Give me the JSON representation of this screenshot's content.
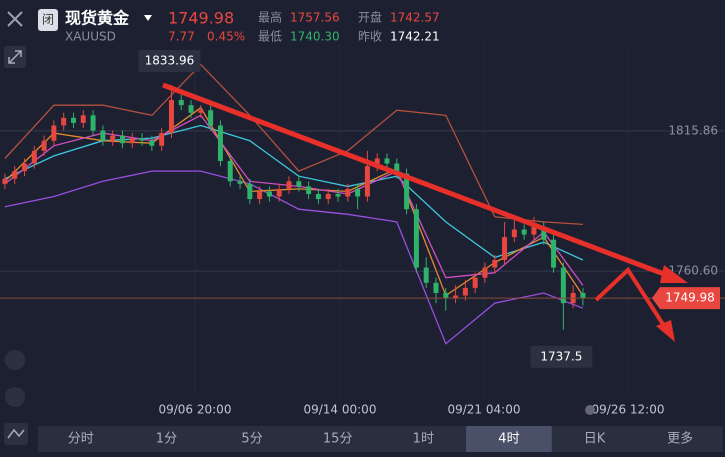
{
  "header": {
    "close_button": "闭",
    "name": "现货黄金",
    "symbol": "XAUUSD",
    "price": "1749.98",
    "change": "7.77",
    "change_pct": "0.45%",
    "high_label": "最高",
    "high": "1757.56",
    "open_label": "开盘",
    "open": "1742.57",
    "low_label": "最低",
    "low": "1740.30",
    "prev_label": "昨收",
    "prev": "1742.21"
  },
  "chart_data": {
    "type": "candlestick",
    "candles": [
      [
        1795,
        1799,
        1793,
        1797
      ],
      [
        1797,
        1802,
        1795,
        1800
      ],
      [
        1800,
        1805,
        1798,
        1803
      ],
      [
        1803,
        1810,
        1801,
        1808
      ],
      [
        1808,
        1814,
        1806,
        1812
      ],
      [
        1812,
        1820,
        1810,
        1818
      ],
      [
        1818,
        1823,
        1816,
        1821
      ],
      [
        1821,
        1823,
        1817,
        1819
      ],
      [
        1819,
        1824,
        1817,
        1822
      ],
      [
        1822,
        1824,
        1814,
        1816
      ],
      [
        1816,
        1818,
        1810,
        1812
      ],
      [
        1812,
        1816,
        1810,
        1814
      ],
      [
        1814,
        1816,
        1809,
        1811
      ],
      [
        1811,
        1815,
        1809,
        1813
      ],
      [
        1813,
        1815,
        1810,
        1812
      ],
      [
        1812,
        1814,
        1808,
        1810
      ],
      [
        1810,
        1817,
        1808,
        1815
      ],
      [
        1815,
        1833.96,
        1813,
        1828
      ],
      [
        1828,
        1830,
        1824,
        1826
      ],
      [
        1826,
        1828,
        1821,
        1823
      ],
      [
        1823,
        1826,
        1821,
        1824
      ],
      [
        1824,
        1826,
        1816,
        1818
      ],
      [
        1818,
        1820,
        1802,
        1804
      ],
      [
        1804,
        1806,
        1794,
        1796
      ],
      [
        1796,
        1798,
        1793,
        1795
      ],
      [
        1795,
        1797,
        1787,
        1789
      ],
      [
        1789,
        1794,
        1787,
        1792
      ],
      [
        1792,
        1794,
        1788,
        1790
      ],
      [
        1790,
        1795,
        1788,
        1793
      ],
      [
        1793,
        1798,
        1791,
        1796
      ],
      [
        1796,
        1798,
        1792,
        1794
      ],
      [
        1794,
        1796,
        1789,
        1791
      ],
      [
        1791,
        1793,
        1787,
        1789
      ],
      [
        1789,
        1793,
        1787,
        1791
      ],
      [
        1791,
        1793,
        1788,
        1790
      ],
      [
        1790,
        1795,
        1788,
        1793
      ],
      [
        1793,
        1795,
        1785,
        1790
      ],
      [
        1790,
        1808,
        1788,
        1802
      ],
      [
        1802,
        1807,
        1800,
        1805
      ],
      [
        1805,
        1807,
        1801,
        1803
      ],
      [
        1803,
        1805,
        1797,
        1799
      ],
      [
        1799,
        1801,
        1783,
        1785
      ],
      [
        1785,
        1787,
        1760,
        1762
      ],
      [
        1762,
        1766,
        1754,
        1756
      ],
      [
        1756,
        1758,
        1748,
        1752
      ],
      [
        1752,
        1754,
        1745,
        1750
      ],
      [
        1750,
        1755,
        1748,
        1751
      ],
      [
        1751,
        1757,
        1749,
        1754
      ],
      [
        1754,
        1760,
        1752,
        1758
      ],
      [
        1758,
        1764,
        1756,
        1762
      ],
      [
        1762,
        1767,
        1760,
        1765
      ],
      [
        1765,
        1780,
        1763,
        1774
      ],
      [
        1774,
        1781,
        1772,
        1777
      ],
      [
        1777,
        1779,
        1773,
        1775
      ],
      [
        1775,
        1782,
        1773,
        1778
      ],
      [
        1778,
        1780,
        1771,
        1773
      ],
      [
        1773,
        1775,
        1760,
        1762
      ],
      [
        1762,
        1764,
        1737.5,
        1748
      ],
      [
        1748,
        1755,
        1746,
        1752
      ],
      [
        1752,
        1754,
        1747,
        1749.98
      ]
    ],
    "up_color": "#e8473f",
    "down_color": "#2fb36a",
    "line_x": [
      0,
      5,
      10,
      15,
      20,
      25,
      30,
      35,
      40,
      45,
      50,
      55,
      59
    ],
    "series": [
      {
        "color": "#b5503e",
        "values": [
          1805,
          1826,
          1826,
          1822,
          1842,
          1822,
          1800,
          1808,
          1824,
          1822,
          1782,
          1780,
          1779
        ]
      },
      {
        "color": "#3ec7e0",
        "values": [
          1797,
          1806,
          1812,
          1813,
          1818,
          1812,
          1798,
          1794,
          1798,
          1780,
          1766,
          1772,
          1765
        ]
      },
      {
        "color": "#9a4fe0",
        "values": [
          1786,
          1790,
          1796,
          1800,
          1800,
          1795,
          1785,
          1783,
          1780,
          1732,
          1748,
          1752,
          1746
        ]
      },
      {
        "color": "#e38a2c",
        "values": [
          1796,
          1815,
          1812,
          1811,
          1825,
          1792,
          1793,
          1792,
          1801,
          1751,
          1764,
          1774,
          1751
        ]
      },
      {
        "color": "#d04fc0",
        "values": [
          1795,
          1810,
          1815,
          1812,
          1822,
          1796,
          1794,
          1791,
          1800,
          1758,
          1760,
          1776,
          1755
        ]
      }
    ],
    "xlim": [
      -0.5,
      73.5
    ],
    "ylim": [
      1711.8,
      1849.7
    ],
    "xticks": [
      {
        "value": 19.4,
        "label": "09/06 20:00"
      },
      {
        "value": 34.2,
        "label": "09/14 00:00"
      },
      {
        "value": 48.9,
        "label": "09/21 04:00"
      },
      {
        "value": 63.6,
        "label": "09/26 12:00"
      }
    ],
    "yticks": [
      1815.86,
      {
        "value": 1760.6,
        "label": "1760.60"
      }
    ],
    "grid": true
  },
  "tabs": [
    "分时",
    "1分",
    "5分",
    "15分",
    "1时",
    "4时",
    "日K",
    "更多"
  ]
}
